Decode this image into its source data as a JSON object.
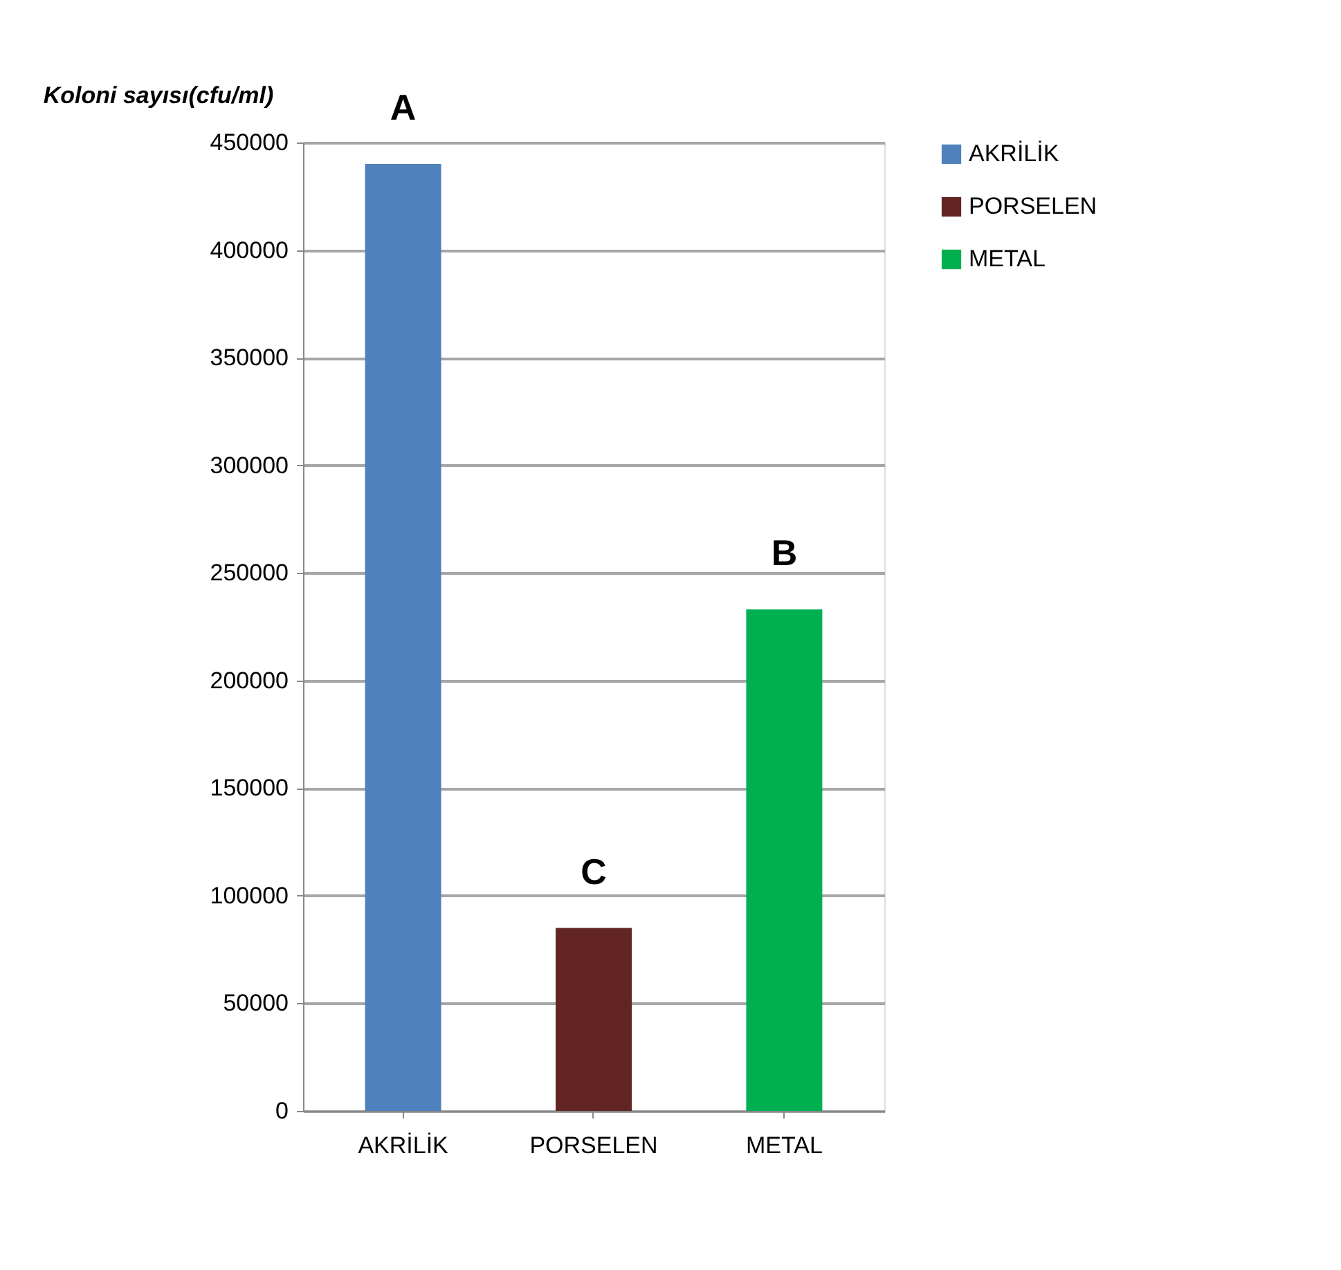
{
  "chart_data": {
    "type": "bar",
    "ylabel": "Koloni sayısı(cfu/ml)",
    "categories": [
      "AKRİLİK",
      "PORSELEN",
      "METAL"
    ],
    "series": [
      {
        "name": "AKRİLİK",
        "color": "#4f81bd",
        "values": [
          440000,
          null,
          null
        ]
      },
      {
        "name": "PORSELEN",
        "color": "#632523",
        "values": [
          null,
          85000,
          null
        ]
      },
      {
        "name": "METAL",
        "color": "#00b050",
        "values": [
          null,
          null,
          233000
        ]
      }
    ],
    "ylim": [
      0,
      450000
    ],
    "yticks": [
      0,
      50000,
      100000,
      150000,
      200000,
      250000,
      300000,
      350000,
      400000,
      450000
    ],
    "grid": "y",
    "legend": "right",
    "annotations": [
      {
        "text": "A",
        "x": "AKRİLİK",
        "y": 440000
      },
      {
        "text": "C",
        "x": "PORSELEN",
        "y": 85000
      },
      {
        "text": "B",
        "x": "METAL",
        "y": 233000
      }
    ]
  }
}
